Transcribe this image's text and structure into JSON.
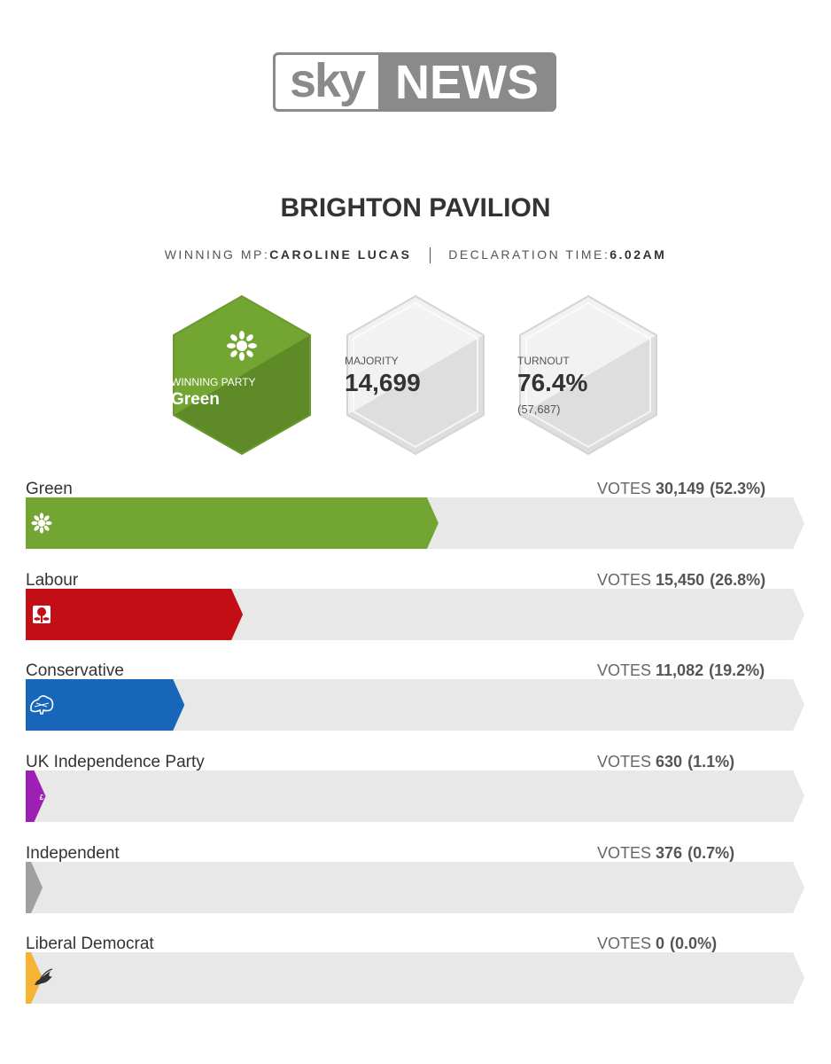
{
  "logo": {
    "sky": "sky",
    "news": "NEWS"
  },
  "title": "BRIGHTON PAVILION",
  "meta": {
    "mp_label": "WINNING MP:",
    "mp_name": "CAROLINE LUCAS",
    "time_label": "DECLARATION TIME:",
    "time_value": "6.02AM"
  },
  "stats": {
    "winning_party_label": "WINNING PARTY",
    "winning_party": "Green",
    "majority_label": "MAJORITY",
    "majority": "14,699",
    "turnout_label": "TURNOUT",
    "turnout": "76.4%",
    "turnout_votes": "(57,687)"
  },
  "colors": {
    "Green": "#73a533",
    "Labour": "#c40e16",
    "Conservative": "#1866b9",
    "UK Independence Party": "#9d1fb4",
    "Independent": "#a0a0a0",
    "Liberal Democrat": "#f7b333",
    "track": "#e8e8e8"
  },
  "chart_data": {
    "type": "bar",
    "orientation": "horizontal",
    "votes_label": "VOTES",
    "categories": [
      "Green",
      "Labour",
      "Conservative",
      "UK Independence Party",
      "Independent",
      "Liberal Democrat"
    ],
    "votes": [
      "30,149",
      "15,450",
      "11,082",
      "630",
      "376",
      "0"
    ],
    "percent_labels": [
      "(52.3%)",
      "(26.8%)",
      "(19.2%)",
      "(1.1%)",
      "(0.7%)",
      "(0.0%)"
    ],
    "values": [
      52.3,
      26.8,
      19.2,
      1.1,
      0.7,
      0.0
    ],
    "xlim": [
      0,
      100
    ],
    "icons": [
      "green-party-logo-icon",
      "labour-rose-icon",
      "conservative-tree-icon",
      "ukip-logo-icon",
      "",
      "libdem-bird-icon"
    ]
  }
}
